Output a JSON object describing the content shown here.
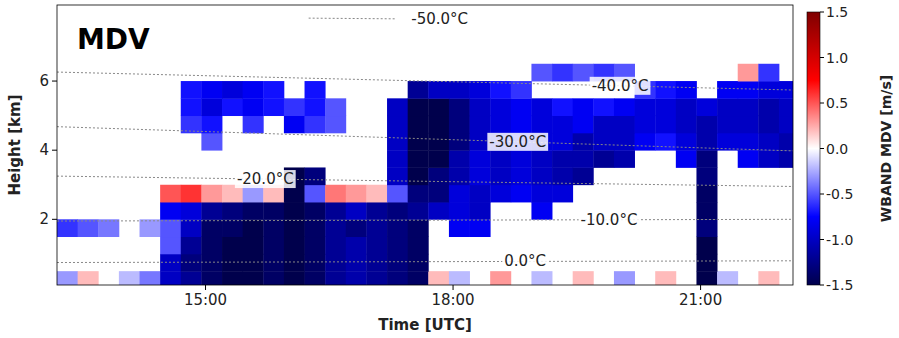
{
  "chart_data": {
    "type": "heatmap",
    "title": "MDV",
    "x_label": "Time [UTC]",
    "y_label": "Height [km]",
    "xlim": [
      13.2,
      22.12
    ],
    "ylim": [
      0.1,
      8.2
    ],
    "xticks": [
      {
        "value": 15,
        "label": "15:00"
      },
      {
        "value": 18,
        "label": "18:00"
      },
      {
        "value": 21,
        "label": "21:00"
      }
    ],
    "yticks": [
      2,
      4,
      6
    ],
    "grid": false,
    "x_bins": [
      13.2,
      13.45,
      13.7,
      13.95,
      14.2,
      14.45,
      14.7,
      14.95,
      15.2,
      15.45,
      15.7,
      15.95,
      16.2,
      16.45,
      16.7,
      16.95,
      17.2,
      17.45,
      17.7,
      17.95,
      18.2,
      18.45,
      18.7,
      18.95,
      19.2,
      19.45,
      19.7,
      19.95,
      20.2,
      20.45,
      20.7,
      20.95,
      21.2,
      21.45,
      21.7,
      21.95,
      22.2
    ],
    "y_bins": [
      0,
      0.5,
      1,
      1.5,
      2,
      2.5,
      3,
      3.5,
      4,
      4.5,
      5,
      5.5,
      6,
      6.5
    ],
    "cells": [
      [
        -0.3,
        0.2,
        null,
        -0.2,
        -0.4,
        -1.0,
        -1.2,
        -1.4,
        -1.5,
        -1.5,
        -1.4,
        -1.5,
        -1.4,
        -1.2,
        -1.1,
        -1.2,
        -1.3,
        -1.4,
        0.2,
        -0.2,
        null,
        0.3,
        null,
        -0.2,
        null,
        0.2,
        null,
        -0.3,
        null,
        0.2,
        null,
        -1.5,
        -0.2,
        null,
        0.2,
        null
      ],
      [
        null,
        null,
        null,
        null,
        null,
        -1.0,
        -1.3,
        -1.4,
        -1.5,
        -1.5,
        -1.4,
        -1.5,
        -1.4,
        -1.2,
        -1.1,
        -1.2,
        -1.3,
        -1.4,
        null,
        null,
        null,
        null,
        null,
        null,
        null,
        null,
        null,
        null,
        null,
        null,
        null,
        -1.5,
        null,
        null,
        null,
        null
      ],
      [
        null,
        null,
        null,
        null,
        null,
        -0.5,
        -1.2,
        -1.4,
        -1.5,
        -1.5,
        -1.4,
        -1.5,
        -1.4,
        -1.2,
        -1.1,
        -1.2,
        -1.3,
        -1.4,
        null,
        null,
        null,
        null,
        null,
        null,
        null,
        null,
        null,
        null,
        null,
        null,
        null,
        -1.5,
        null,
        null,
        null,
        null
      ],
      [
        -0.6,
        -0.5,
        -0.4,
        null,
        -0.3,
        -0.5,
        -1.0,
        -1.4,
        -1.4,
        -1.5,
        -1.4,
        -1.5,
        -1.4,
        -1.2,
        -1.3,
        -1.2,
        -1.3,
        -1.4,
        null,
        -0.8,
        -0.8,
        null,
        null,
        null,
        null,
        null,
        null,
        null,
        null,
        null,
        null,
        -1.3,
        null,
        null,
        null,
        null
      ],
      [
        null,
        null,
        null,
        null,
        null,
        -0.8,
        -0.9,
        -1.2,
        -1.3,
        -1.4,
        -1.4,
        -1.5,
        -1.4,
        -1.2,
        -1.0,
        -1.2,
        -1.3,
        -1.2,
        -1.0,
        -0.9,
        -1.0,
        null,
        null,
        -0.8,
        null,
        null,
        null,
        null,
        null,
        null,
        null,
        -1.4,
        null,
        null,
        null,
        null
      ],
      [
        null,
        null,
        null,
        null,
        null,
        0.5,
        0.6,
        0.3,
        0.2,
        -0.3,
        0.2,
        -1.5,
        -0.5,
        0.4,
        0.3,
        0.2,
        -0.5,
        -1.3,
        -1.3,
        -0.9,
        -1.0,
        -0.9,
        -0.8,
        -0.9,
        -0.9,
        null,
        null,
        null,
        null,
        null,
        null,
        -1.4,
        null,
        null,
        null,
        null
      ],
      [
        null,
        null,
        null,
        null,
        null,
        null,
        null,
        null,
        null,
        null,
        null,
        -1.5,
        -1.3,
        null,
        null,
        null,
        -1.0,
        -1.5,
        -1.3,
        -1.1,
        -0.9,
        -1.0,
        -0.9,
        -1.0,
        -1.1,
        -1.2,
        null,
        null,
        null,
        null,
        null,
        -1.3,
        null,
        null,
        null,
        null
      ],
      [
        null,
        null,
        null,
        null,
        null,
        null,
        null,
        null,
        null,
        null,
        null,
        null,
        null,
        null,
        null,
        null,
        -1.0,
        -1.5,
        -1.5,
        -1.1,
        -0.9,
        -1.0,
        -0.9,
        -1.0,
        -1.1,
        -1.1,
        -1.2,
        -1.1,
        null,
        null,
        -0.8,
        -1.3,
        null,
        -0.8,
        -1.0,
        -1.1
      ],
      [
        null,
        null,
        null,
        null,
        null,
        null,
        null,
        -0.5,
        null,
        null,
        null,
        null,
        null,
        null,
        null,
        null,
        -1.0,
        -1.5,
        -1.5,
        -1.3,
        -1.0,
        -0.9,
        -0.8,
        -0.9,
        -0.9,
        -1.1,
        -1.0,
        -1.0,
        -0.8,
        -0.7,
        -0.9,
        -1.1,
        -0.9,
        -0.9,
        -1.0,
        -1.1
      ],
      [
        null,
        null,
        null,
        null,
        null,
        null,
        -0.6,
        -0.7,
        null,
        -0.6,
        null,
        -0.8,
        -0.6,
        -0.5,
        null,
        null,
        -1.0,
        -1.5,
        -1.5,
        -1.3,
        -1.0,
        -0.9,
        -0.8,
        -0.9,
        -0.9,
        -0.8,
        -1.0,
        -1.0,
        -0.9,
        -0.9,
        -1.0,
        -1.1,
        -1.0,
        -1.0,
        -1.1,
        -1.0
      ],
      [
        null,
        null,
        null,
        null,
        null,
        null,
        -0.7,
        -0.9,
        -0.7,
        -0.8,
        -0.7,
        -0.6,
        -0.7,
        -0.5,
        null,
        null,
        -1.0,
        -1.5,
        -1.5,
        -1.3,
        -1.0,
        -0.9,
        -0.8,
        -0.9,
        -0.7,
        -0.8,
        -0.7,
        -0.8,
        -0.9,
        -0.9,
        -1.0,
        -0.9,
        -1.0,
        -1.0,
        -1.1,
        -1.0
      ],
      [
        null,
        null,
        null,
        null,
        null,
        null,
        -0.7,
        -0.8,
        -0.9,
        -0.8,
        -0.7,
        null,
        -0.7,
        null,
        null,
        null,
        null,
        -1.2,
        -1.0,
        -1.0,
        -0.9,
        -0.7,
        -0.6,
        null,
        null,
        null,
        null,
        null,
        -0.6,
        -0.7,
        -0.8,
        null,
        -0.8,
        -0.8,
        -0.9,
        -0.9
      ],
      [
        null,
        null,
        null,
        null,
        null,
        null,
        null,
        null,
        null,
        null,
        null,
        null,
        null,
        null,
        null,
        null,
        null,
        null,
        null,
        null,
        null,
        null,
        null,
        -0.5,
        -0.6,
        -0.5,
        -0.6,
        -0.5,
        null,
        null,
        null,
        null,
        null,
        0.3,
        -0.6,
        null
      ]
    ],
    "color_range": [
      -1.5,
      1.5
    ],
    "color_ticks": [
      -1.5,
      {
        "value": -1,
        "label": "-1.0"
      },
      -0.5,
      {
        "value": 0,
        "label": "0.0"
      },
      0.5,
      {
        "value": 1,
        "label": "1.0"
      },
      1.5
    ],
    "colorbar_label": "WBAND MDV [m/s]",
    "series": [
      {
        "name": "-50.0°C",
        "type": "line",
        "line_style": "dotted",
        "color": "#888888",
        "x": [
          16.25,
          17.3
        ],
        "values": [
          7.82,
          7.8
        ]
      },
      {
        "name": "-40.0°C",
        "type": "line",
        "line_style": "dotted",
        "color": "#888888",
        "x": [
          13.2,
          22.12
        ],
        "values": [
          6.26,
          5.74
        ]
      },
      {
        "name": "-30.0°C",
        "type": "line",
        "line_style": "dotted",
        "color": "#888888",
        "x": [
          13.2,
          22.12
        ],
        "values": [
          4.68,
          3.98
        ]
      },
      {
        "name": "-20.0°C",
        "type": "line",
        "line_style": "dotted",
        "color": "#888888",
        "x": [
          13.2,
          22.12
        ],
        "values": [
          3.25,
          2.95
        ]
      },
      {
        "name": "-10.0°C",
        "type": "line",
        "line_style": "dotted",
        "color": "#888888",
        "x": [
          13.2,
          22.12
        ],
        "values": [
          1.95,
          2.0
        ]
      },
      {
        "name": "0.0°C",
        "type": "line",
        "line_style": "dotted",
        "color": "#888888",
        "x": [
          13.2,
          22.12
        ],
        "values": [
          0.75,
          0.8
        ]
      }
    ]
  }
}
